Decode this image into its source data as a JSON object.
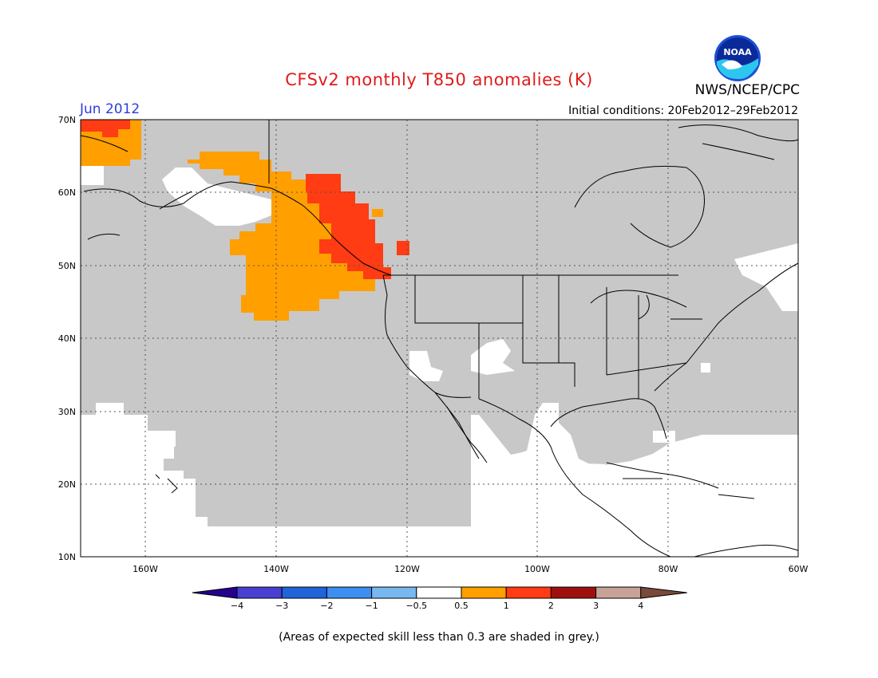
{
  "header": {
    "title": "CFSv2 monthly T850 anomalies (K)",
    "month": "Jun 2012",
    "initial_conditions": "Initial conditions: 20Feb2012–29Feb2012",
    "organization": "NWS/NCEP/CPC",
    "logo_text": "NOAA"
  },
  "map": {
    "lat_labels": [
      "70N",
      "60N",
      "50N",
      "40N",
      "30N",
      "20N",
      "10N"
    ],
    "lon_labels": [
      "160W",
      "140W",
      "120W",
      "100W",
      "80W",
      "60W"
    ],
    "extent": {
      "lon": [
        -170,
        -60
      ],
      "lat": [
        10,
        70
      ]
    },
    "colors": {
      "grey_skill": "#c8c8c8",
      "anomaly_0_5_to_1": "#ff9f00",
      "anomaly_1_to_2": "#ff3c13",
      "coast": "#000000"
    }
  },
  "legend": {
    "labels": [
      "−4",
      "−3",
      "−2",
      "−1",
      "−0.5",
      "0.5",
      "1",
      "2",
      "3",
      "4"
    ],
    "colors": [
      "#24028e",
      "#4a3fd3",
      "#1f64d8",
      "#3c8ff1",
      "#78b8ee",
      "#ffffff",
      "#ff9f00",
      "#ff3c13",
      "#a00f0f",
      "#c8a296",
      "#7a4a3a"
    ]
  },
  "footer": {
    "note": "(Areas of expected skill less than 0.3 are shaded in grey.)"
  }
}
